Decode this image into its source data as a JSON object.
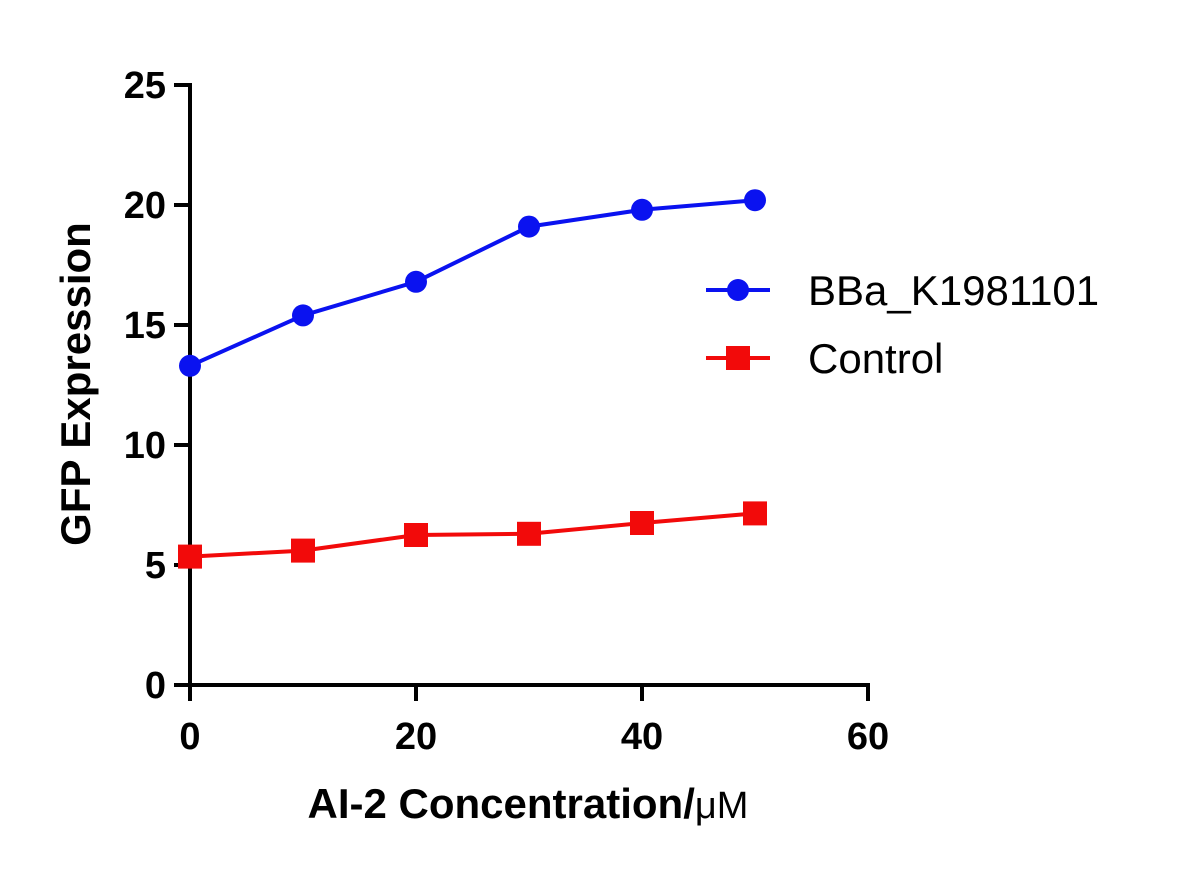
{
  "chart_data": {
    "type": "line",
    "title": "",
    "xlabel": "AI-2 Concentration/",
    "xlabel_unit": "μM",
    "ylabel": "GFP Expression",
    "xlim": [
      0,
      60
    ],
    "ylim": [
      0,
      25
    ],
    "xticks": [
      "0",
      "20",
      "40",
      "60"
    ],
    "yticks": [
      "0",
      "5",
      "10",
      "15",
      "20",
      "25"
    ],
    "x": [
      0,
      10,
      20,
      30,
      40,
      50
    ],
    "grid": false,
    "legend_position": "right",
    "series": [
      {
        "name": "BBa_K1981101",
        "color": "#0a12f0",
        "marker": "circle",
        "values": [
          13.3,
          15.4,
          16.8,
          19.1,
          19.8,
          20.2
        ]
      },
      {
        "name": "Control",
        "color": "#f20a0a",
        "marker": "square",
        "values": [
          5.35,
          5.6,
          6.25,
          6.3,
          6.75,
          7.15
        ]
      }
    ]
  }
}
